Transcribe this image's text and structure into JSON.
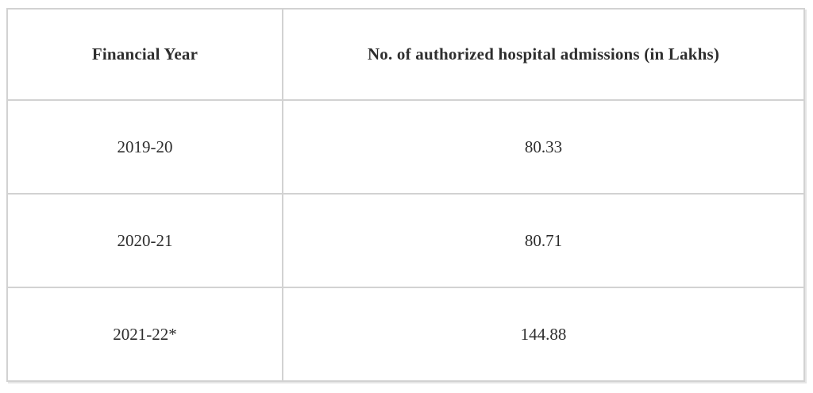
{
  "table": {
    "headers": [
      {
        "label": "Financial Year"
      },
      {
        "label": "No. of authorized hospital admissions (in Lakhs)"
      }
    ],
    "rows": [
      {
        "year": "2019-20",
        "admissions": "80.33"
      },
      {
        "year": "2020-21",
        "admissions": "80.71"
      },
      {
        "year": "2021-22*",
        "admissions": "144.88"
      }
    ]
  },
  "chart_data": {
    "type": "table",
    "columns": [
      "Financial Year",
      "No. of authorized hospital admissions (in Lakhs)"
    ],
    "rows": [
      [
        "2019-20",
        80.33
      ],
      [
        "2020-21",
        80.71
      ],
      [
        "2021-22*",
        144.88
      ]
    ]
  },
  "colors": {
    "background": "#ffffff",
    "border": "#d2d2d2",
    "text": "#2e2e2e"
  }
}
